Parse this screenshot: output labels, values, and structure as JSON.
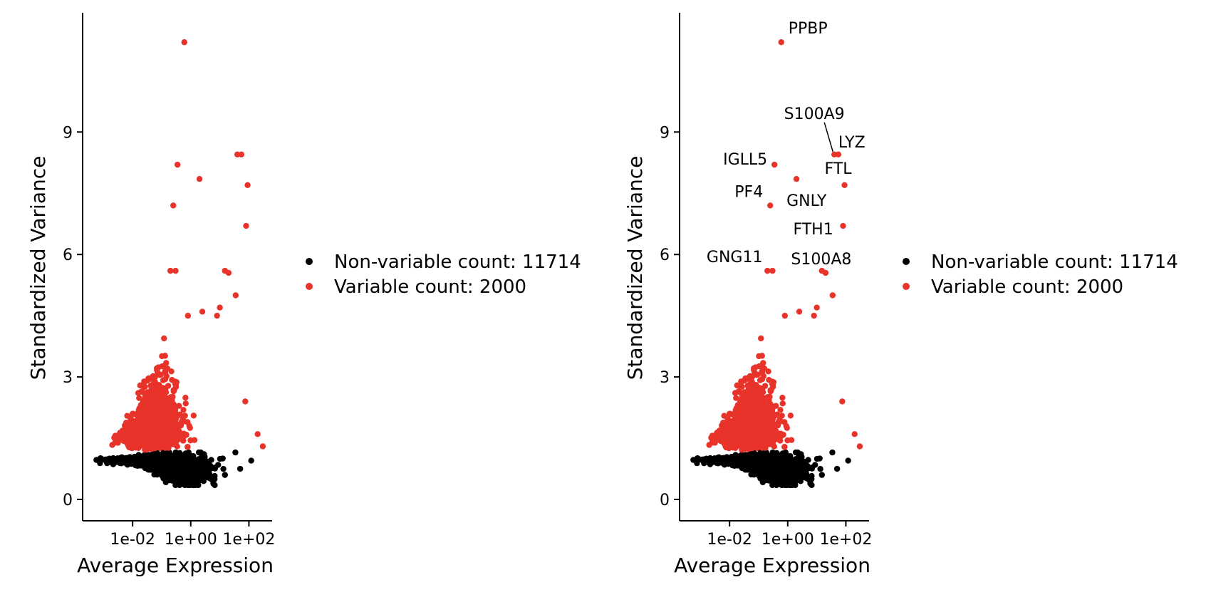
{
  "chart_data": [
    {
      "type": "scatter",
      "title": "",
      "xlabel": "Average Expression",
      "ylabel": "Standardized Variance",
      "x_scale": "log10",
      "xlim": [
        0.0003,
        400
      ],
      "ylim": [
        -0.5,
        11.5
      ],
      "x_ticks": [
        0.01,
        1,
        100
      ],
      "x_tick_labels": [
        "1e-02",
        "1e+00",
        "1e+02"
      ],
      "y_ticks": [
        0,
        3,
        6,
        9
      ],
      "y_tick_labels": [
        "0",
        "3",
        "6",
        "9"
      ],
      "legend_position": "right",
      "series": [
        {
          "name": "Non-variable count: 11714",
          "color": "#000000",
          "points": [
            [
              0.0008,
              1.0
            ],
            [
              0.0016,
              1.0
            ],
            [
              0.003,
              0.97
            ],
            [
              0.006,
              0.94
            ],
            [
              0.012,
              0.9
            ],
            [
              0.03,
              0.85
            ],
            [
              0.08,
              0.7
            ],
            [
              0.2,
              0.55
            ],
            [
              0.5,
              0.45
            ],
            [
              1.5,
              0.42
            ],
            [
              5,
              0.5
            ],
            [
              15,
              0.6
            ],
            [
              50,
              0.75
            ],
            [
              120,
              0.95
            ]
          ]
        },
        {
          "name": "Variable count: 2000",
          "color": "#e8332a",
          "points": [
            [
              0.6,
              11.2
            ],
            [
              0.35,
              8.2
            ],
            [
              40,
              8.45
            ],
            [
              55,
              8.45
            ],
            [
              2,
              7.85
            ],
            [
              0.25,
              7.2
            ],
            [
              90,
              7.7
            ],
            [
              80,
              6.7
            ],
            [
              0.3,
              5.6
            ],
            [
              0.2,
              5.6
            ],
            [
              15,
              5.6
            ],
            [
              20,
              5.55
            ],
            [
              35,
              5.0
            ],
            [
              0.8,
              4.5
            ],
            [
              2.5,
              4.6
            ],
            [
              10,
              4.7
            ],
            [
              8,
              4.5
            ],
            [
              75,
              2.4
            ],
            [
              200,
              1.6
            ],
            [
              300,
              1.3
            ]
          ]
        }
      ],
      "gene_labels": []
    },
    {
      "type": "scatter",
      "title": "",
      "xlabel": "Average Expression",
      "ylabel": "Standardized Variance",
      "x_scale": "log10",
      "xlim": [
        0.0003,
        400
      ],
      "ylim": [
        -0.5,
        11.5
      ],
      "x_ticks": [
        0.01,
        1,
        100
      ],
      "x_tick_labels": [
        "1e-02",
        "1e+00",
        "1e+02"
      ],
      "y_ticks": [
        0,
        3,
        6,
        9
      ],
      "y_tick_labels": [
        "0",
        "3",
        "6",
        "9"
      ],
      "legend_position": "right",
      "series": [
        {
          "name": "Non-variable count: 11714",
          "color": "#000000",
          "points": [
            [
              0.0008,
              1.0
            ],
            [
              0.0016,
              1.0
            ],
            [
              0.003,
              0.97
            ],
            [
              0.006,
              0.94
            ],
            [
              0.012,
              0.9
            ],
            [
              0.03,
              0.85
            ],
            [
              0.08,
              0.7
            ],
            [
              0.2,
              0.55
            ],
            [
              0.5,
              0.45
            ],
            [
              1.5,
              0.42
            ],
            [
              5,
              0.5
            ],
            [
              15,
              0.6
            ],
            [
              50,
              0.75
            ],
            [
              120,
              0.95
            ]
          ]
        },
        {
          "name": "Variable count: 2000",
          "color": "#e8332a",
          "points": [
            [
              0.6,
              11.2
            ],
            [
              0.35,
              8.2
            ],
            [
              40,
              8.45
            ],
            [
              55,
              8.45
            ],
            [
              2,
              7.85
            ],
            [
              0.25,
              7.2
            ],
            [
              90,
              7.7
            ],
            [
              80,
              6.7
            ],
            [
              0.3,
              5.6
            ],
            [
              0.2,
              5.6
            ],
            [
              15,
              5.6
            ],
            [
              20,
              5.55
            ],
            [
              35,
              5.0
            ],
            [
              0.8,
              4.5
            ],
            [
              2.5,
              4.6
            ],
            [
              10,
              4.7
            ],
            [
              8,
              4.5
            ],
            [
              75,
              2.4
            ],
            [
              200,
              1.6
            ],
            [
              300,
              1.3
            ]
          ]
        }
      ],
      "gene_labels": [
        {
          "text": "PPBP",
          "x": 0.6,
          "y": 11.2
        },
        {
          "text": "S100A9",
          "x": 40,
          "y": 8.45
        },
        {
          "text": "LYZ",
          "x": 55,
          "y": 8.45
        },
        {
          "text": "IGLL5",
          "x": 0.35,
          "y": 8.2
        },
        {
          "text": "FTL",
          "x": 90,
          "y": 7.7
        },
        {
          "text": "PF4",
          "x": 0.25,
          "y": 7.2
        },
        {
          "text": "GNLY",
          "x": 2,
          "y": 7.85
        },
        {
          "text": "FTH1",
          "x": 80,
          "y": 6.7
        },
        {
          "text": "GNG11",
          "x": 0.3,
          "y": 5.6
        },
        {
          "text": "S100A8",
          "x": 20,
          "y": 5.55
        }
      ]
    }
  ]
}
